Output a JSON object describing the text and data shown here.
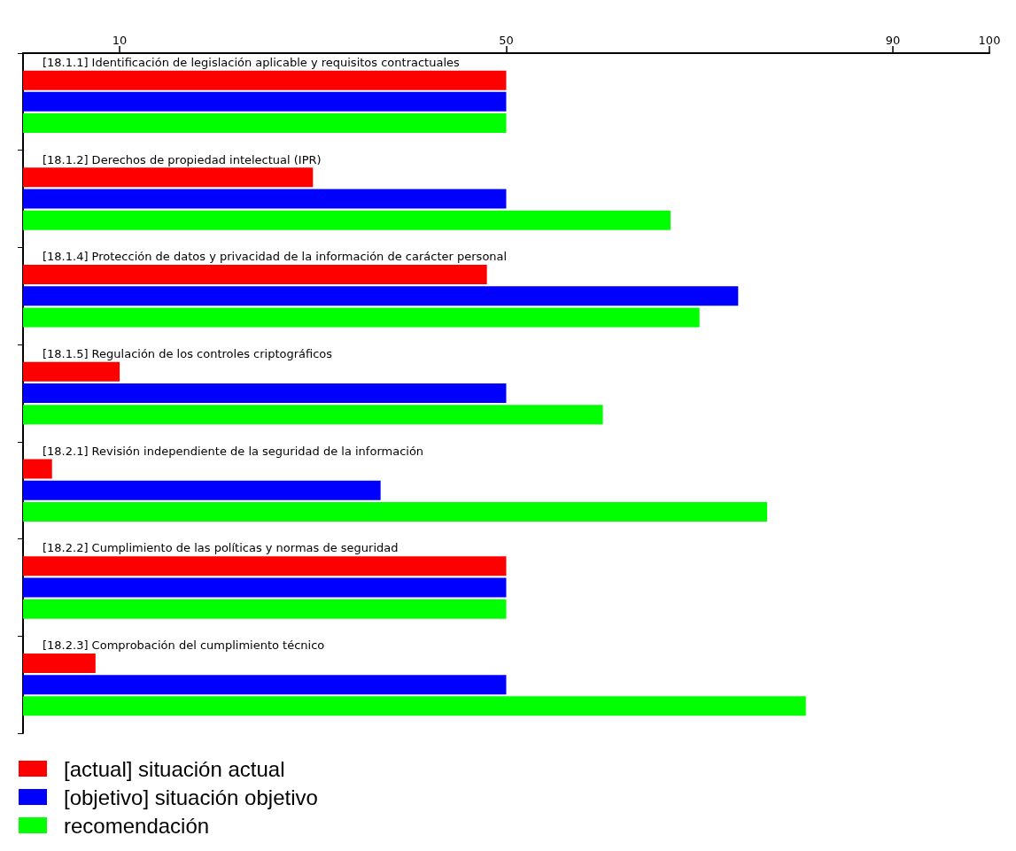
{
  "chart_data": {
    "type": "bar",
    "orientation": "horizontal",
    "categories": [
      "[18.1.1] Identificación de legislación aplicable y requisitos contractuales",
      "[18.1.2] Derechos de propiedad intelectual (IPR)",
      "[18.1.4] Protección de datos y privacidad de la información de carácter personal",
      "[18.1.5] Regulación de los controles criptográficos",
      "[18.2.1] Revisión independiente de la seguridad de la información",
      "[18.2.2] Cumplimiento de las políticas y normas de seguridad",
      "[18.2.3] Comprobación del cumplimiento técnico"
    ],
    "series": [
      {
        "name": "[actual] situación actual",
        "color": "#ff0000",
        "values": [
          50,
          30,
          48,
          10,
          3,
          50,
          7.5
        ]
      },
      {
        "name": "[objetivo] situación objetivo",
        "color": "#0000ff",
        "values": [
          50,
          50,
          74,
          50,
          37,
          50,
          50
        ]
      },
      {
        "name": "recomendación",
        "color": "#00ff00",
        "values": [
          50,
          67,
          70,
          60,
          77,
          50,
          81
        ]
      }
    ],
    "xlim": [
      0,
      100
    ],
    "xticks": [
      10,
      50,
      90,
      100
    ],
    "grid": false,
    "legend": "bottom left"
  }
}
